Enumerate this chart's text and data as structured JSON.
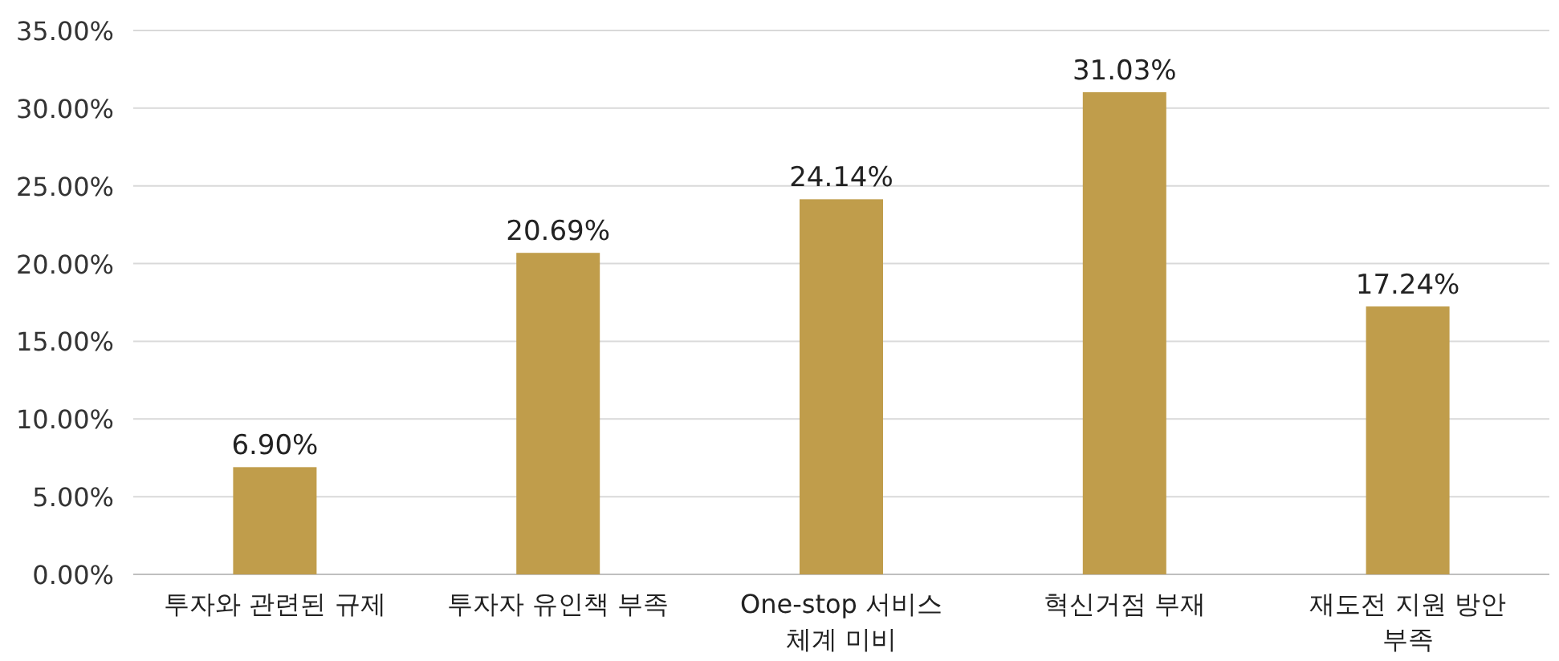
{
  "chart_data": {
    "type": "bar",
    "categories": [
      "투자와 관련된 규제",
      "투자자 유인책 부족",
      "One-stop 서비스 체계 미비",
      "혁신거점 부재",
      "재도전 지원 방안 부족"
    ],
    "values": [
      6.9,
      20.69,
      24.14,
      31.03,
      17.24
    ],
    "value_labels": [
      "6.90%",
      "20.69%",
      "24.14%",
      "31.03%",
      "17.24%"
    ],
    "color": "#c09d4b",
    "ylim": [
      0,
      35
    ],
    "yticks": [
      {
        "value": 0,
        "label": "0.00%"
      },
      {
        "value": 5,
        "label": "5.00%"
      },
      {
        "value": 10,
        "label": "10.00%"
      },
      {
        "value": 15,
        "label": "15.00%"
      },
      {
        "value": 20,
        "label": "20.00%"
      },
      {
        "value": 25,
        "label": "25.00%"
      },
      {
        "value": 30,
        "label": "30.00%"
      },
      {
        "value": 35,
        "label": "35.00%"
      }
    ],
    "grid": "y"
  }
}
